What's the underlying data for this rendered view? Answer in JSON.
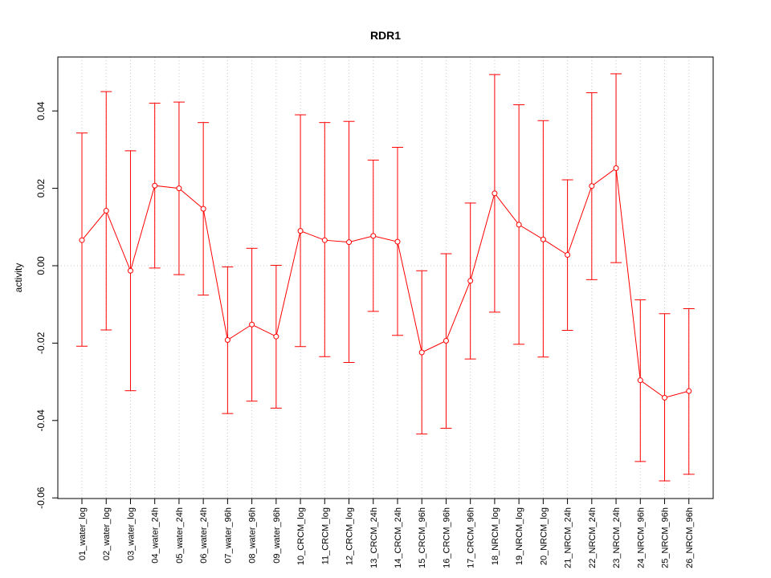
{
  "chart_data": {
    "type": "line",
    "title": "RDR1",
    "xlabel": "",
    "ylabel": "activity",
    "ylim": [
      -0.06,
      0.05
    ],
    "yticks": [
      -0.06,
      -0.04,
      -0.02,
      0.0,
      0.02,
      0.04
    ],
    "ytick_labels": [
      "-0.06",
      "-0.04",
      "-0.02",
      "0.00",
      "0.02",
      "0.04"
    ],
    "grid": "vertical dotted at each category; horizontal dotted at 0",
    "color": "#ff0000",
    "categories": [
      "01_water_log",
      "02_water_log",
      "03_water_log",
      "04_water_24h",
      "05_water_24h",
      "06_water_24h",
      "07_water_96h",
      "08_water_96h",
      "09_water_96h",
      "10_CRCM_log",
      "11_CRCM_log",
      "12_CRCM_log",
      "13_CRCM_24h",
      "14_CRCM_24h",
      "15_CRCM_96h",
      "16_CRCM_96h",
      "17_CRCM_96h",
      "18_NRCM_log",
      "19_NRCM_log",
      "20_NRCM_log",
      "21_NRCM_24h",
      "22_NRCM_24h",
      "23_NRCM_24h",
      "24_NRCM_96h",
      "25_NRCM_96h",
      "26_NRCM_96h"
    ],
    "values": [
      0.0066,
      0.0142,
      -0.0013,
      0.0207,
      0.02,
      0.0147,
      -0.0192,
      -0.0152,
      -0.0183,
      0.009,
      0.0066,
      0.0061,
      0.0077,
      0.0062,
      -0.0224,
      -0.0194,
      -0.0039,
      0.0187,
      0.0106,
      0.0068,
      0.0028,
      0.0206,
      0.0252,
      -0.0296,
      -0.0341,
      -0.0324
    ],
    "upper": [
      0.0343,
      0.045,
      0.0297,
      0.042,
      0.0423,
      0.037,
      -0.0003,
      0.0045,
      0.0001,
      0.039,
      0.037,
      0.0373,
      0.0273,
      0.0306,
      -0.0013,
      0.0031,
      0.0162,
      0.0494,
      0.0416,
      0.0375,
      0.0222,
      0.0447,
      0.0496,
      -0.0088,
      -0.0124,
      -0.0111
    ],
    "lower": [
      -0.0208,
      -0.0166,
      -0.0323,
      -0.0006,
      -0.0023,
      -0.0076,
      -0.0382,
      -0.035,
      -0.0368,
      -0.0209,
      -0.0235,
      -0.025,
      -0.0118,
      -0.018,
      -0.0435,
      -0.042,
      -0.0241,
      -0.012,
      -0.0203,
      -0.0236,
      -0.0167,
      -0.0036,
      0.0008,
      -0.0506,
      -0.0556,
      -0.0539
    ]
  }
}
